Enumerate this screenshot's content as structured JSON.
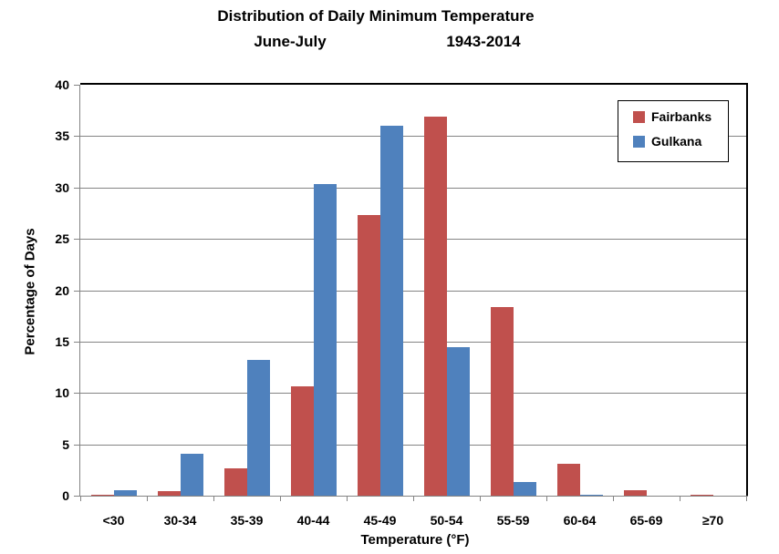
{
  "chart_data": {
    "type": "bar",
    "title": "Distribution of Daily Minimum Temperature",
    "subtitle_left": "June-July",
    "subtitle_right": "1943-2014",
    "xlabel": "Temperature (°F)",
    "ylabel": "Percentage of Days",
    "ylim": [
      0,
      40
    ],
    "ytick_step": 5,
    "yticks": [
      0,
      5,
      10,
      15,
      20,
      25,
      30,
      35,
      40
    ],
    "grid": true,
    "legend_position": "top-right",
    "categories": [
      "<30",
      "30-34",
      "35-39",
      "40-44",
      "45-49",
      "50-54",
      "55-59",
      "60-64",
      "65-69",
      "≥70"
    ],
    "series": [
      {
        "name": "Fairbanks",
        "color": "#C0504D",
        "values": [
          0.1,
          0.4,
          2.7,
          10.6,
          27.3,
          36.9,
          18.4,
          3.1,
          0.5,
          0.1
        ]
      },
      {
        "name": "Gulkana",
        "color": "#4F81BD",
        "values": [
          0.5,
          4.1,
          13.2,
          30.3,
          36.0,
          14.5,
          1.3,
          0.1,
          0.0,
          0.0
        ]
      }
    ],
    "colors": {
      "grid": "#848484",
      "axis": "#848484",
      "plot_border": "#000000",
      "text": "#000000",
      "background": "#FFFFFF"
    }
  }
}
